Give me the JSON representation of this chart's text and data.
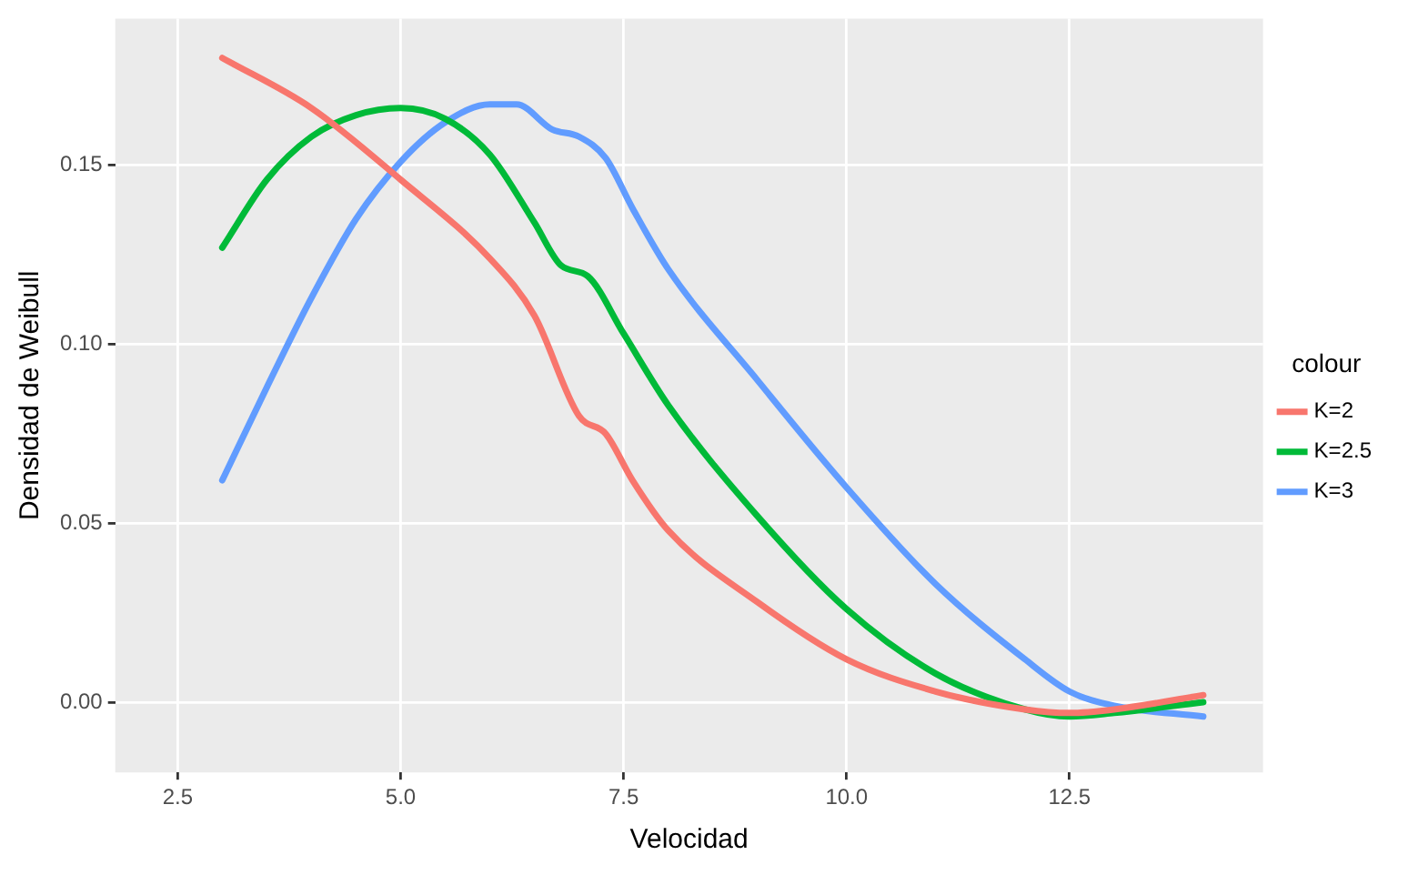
{
  "chart_data": {
    "type": "line",
    "xlabel": "Velocidad",
    "ylabel": "Densidad de Weibull",
    "legend_title": "colour",
    "legend": "right",
    "grid": true,
    "marker": "none",
    "line_style": "solid",
    "xlim": [
      1.8,
      14.67
    ],
    "ylim": [
      -0.0196,
      0.191
    ],
    "xticks": [
      {
        "value": 2.5,
        "label": "2.5"
      },
      {
        "value": 5,
        "label": "5.0"
      },
      {
        "value": 7.5,
        "label": "7.5"
      },
      {
        "value": 10,
        "label": "10.0"
      },
      {
        "value": 12.5,
        "label": "12.5"
      }
    ],
    "yticks": [
      {
        "value": 0,
        "label": "0.00"
      },
      {
        "value": 0.05,
        "label": "0.05"
      },
      {
        "value": 0.1,
        "label": "0.10"
      },
      {
        "value": 0.15,
        "label": "0.15"
      }
    ],
    "series": [
      {
        "name": "K=2",
        "color": "#f8766d",
        "x": [
          3,
          4,
          5,
          6,
          6.5,
          7,
          7.3,
          7.6,
          8,
          9,
          10,
          11,
          12,
          12.5,
          13,
          14
        ],
        "values": [
          0.18,
          0.166,
          0.146,
          0.124,
          0.108,
          0.08,
          0.075,
          0.062,
          0.048,
          0.028,
          0.012,
          0.003,
          -0.002,
          -0.003,
          -0.002,
          0.002
        ]
      },
      {
        "name": "K=2.5",
        "color": "#00ba38",
        "x": [
          3,
          3.5,
          4,
          4.5,
          5,
          5.5,
          6,
          6.5,
          6.8,
          7.1,
          7.5,
          8,
          9,
          10,
          11,
          12,
          12.5,
          13,
          14
        ],
        "values": [
          0.127,
          0.146,
          0.158,
          0.164,
          0.166,
          0.163,
          0.153,
          0.134,
          0.122,
          0.119,
          0.103,
          0.083,
          0.052,
          0.026,
          0.008,
          -0.002,
          -0.004,
          -0.003,
          0
        ]
      },
      {
        "name": "K=3",
        "color": "#619cff",
        "x": [
          3,
          3.5,
          4,
          4.5,
          5,
          5.5,
          6,
          6.3,
          6.7,
          7,
          7.3,
          7.6,
          8,
          9,
          10,
          11,
          12,
          12.5,
          13,
          14
        ],
        "values": [
          0.062,
          0.088,
          0.113,
          0.135,
          0.151,
          0.162,
          0.167,
          0.167,
          0.16,
          0.158,
          0.152,
          0.138,
          0.121,
          0.09,
          0.06,
          0.033,
          0.012,
          0.003,
          -0.001,
          -0.004
        ]
      }
    ]
  }
}
